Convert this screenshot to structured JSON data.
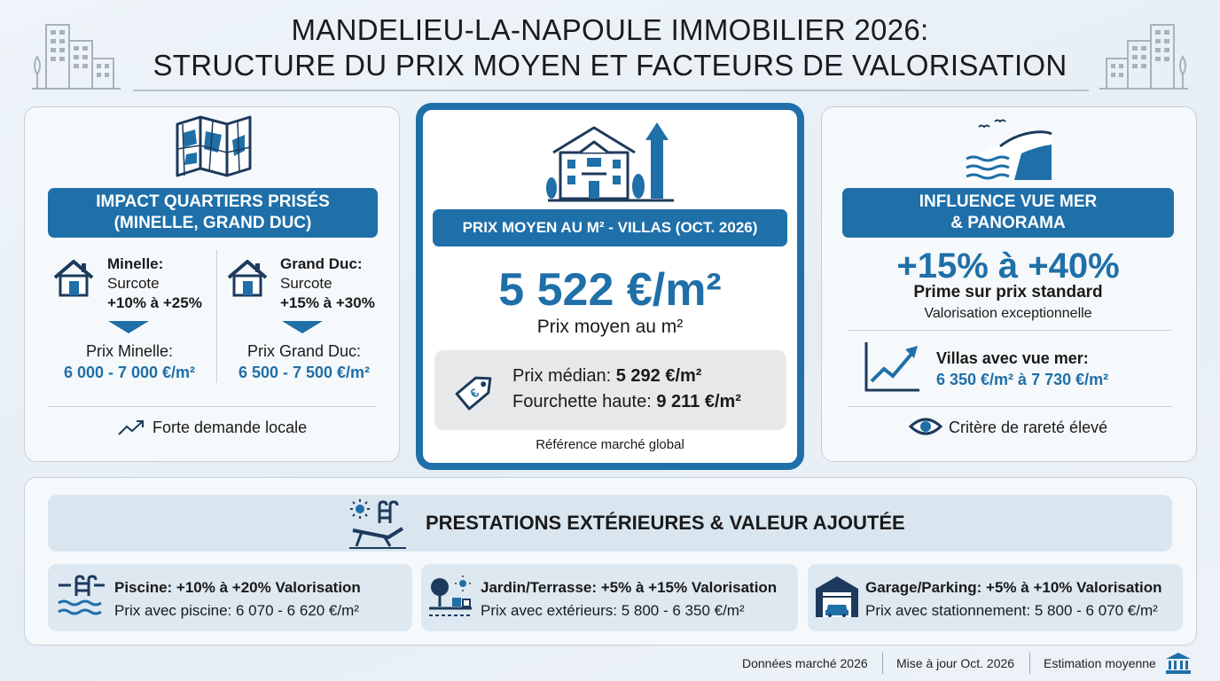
{
  "header": {
    "title_line1": "MANDELIEU-LA-NAPOULE IMMOBILIER 2026:",
    "title_line2": "STRUCTURE DU PRIX MOYEN ET FACTEURS DE VALORISATION"
  },
  "left": {
    "banner_line1": "IMPACT QUARTIERS PRISÉS",
    "banner_line2": "(MINELLE, GRAND DUC)",
    "minelle": {
      "name": "Minelle:",
      "surcote_label": "Surcote",
      "surcote": "+10% à +25%",
      "price_label": "Prix Minelle:",
      "price": "6 000 - 7 000 €/m²"
    },
    "grandduc": {
      "name": "Grand Duc:",
      "surcote_label": "Surcote",
      "surcote": "+15% à +30%",
      "price_label": "Prix Grand Duc:",
      "price": "6 500 - 7 500 €/m²"
    },
    "footer": "Forte demande locale"
  },
  "center": {
    "banner": "PRIX MOYEN AU M² - VILLAS (OCT. 2026)",
    "price": "5 522 €/m²",
    "price_caption": "Prix moyen au m²",
    "median_label": "Prix médian: ",
    "median_value": "5 292 €/m²",
    "high_label": "Fourchette haute: ",
    "high_value": "9 211 €/m²",
    "reference": "Référence marché global"
  },
  "right": {
    "banner_line1": "INFLUENCE VUE MER",
    "banner_line2": "& PANORAMA",
    "premium": "+15% à +40%",
    "premium_label": "Prime sur prix standard",
    "premium_caption": "Valorisation exceptionnelle",
    "villas_label": "Villas avec vue mer:",
    "villas_price": "6 350 €/m² à 7 730 €/m²",
    "footer": "Critère de rareté élevé"
  },
  "bottom": {
    "banner": "PRESTATIONS EXTÉRIEURES & VALEUR AJOUTÉE",
    "cards": [
      {
        "title": "Piscine: +10% à +20% Valorisation",
        "detail": "Prix avec piscine: 6 070 - 6 620 €/m²"
      },
      {
        "title": "Jardin/Terrasse: +5% à +15% Valorisation",
        "detail": "Prix avec extérieurs: 5 800 - 6 350 €/m²"
      },
      {
        "title": "Garage/Parking: +5% à +10% Valorisation",
        "detail": "Prix avec stationnement: 5 800 - 6 070 €/m²"
      }
    ]
  },
  "footer": {
    "item1": "Données marché 2026",
    "item2": "Mise à jour Oct. 2026",
    "item3": "Estimation moyenne"
  },
  "colors": {
    "accent": "#1f6fa8",
    "dark_navy": "#1d3a5c",
    "grey_icon": "#a9b2ba"
  }
}
